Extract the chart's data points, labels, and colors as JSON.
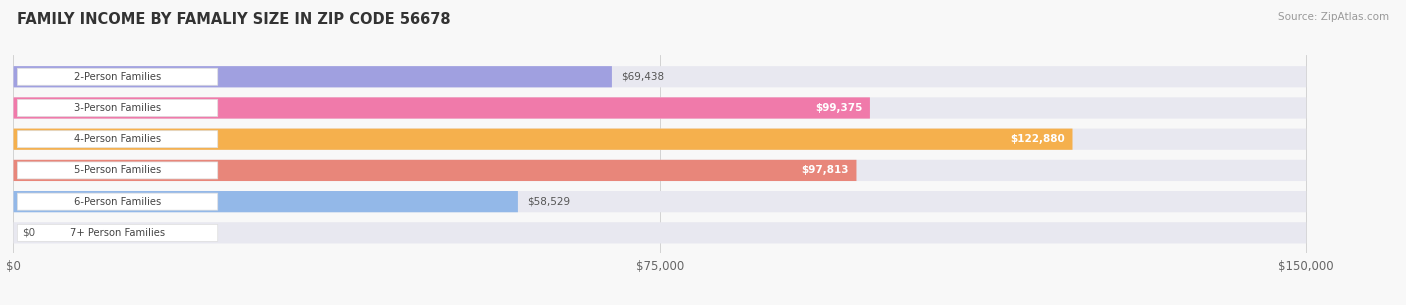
{
  "title": "FAMILY INCOME BY FAMALIY SIZE IN ZIP CODE 56678",
  "source": "Source: ZipAtlas.com",
  "categories": [
    "2-Person Families",
    "3-Person Families",
    "4-Person Families",
    "5-Person Families",
    "6-Person Families",
    "7+ Person Families"
  ],
  "values": [
    69438,
    99375,
    122880,
    97813,
    58529,
    0
  ],
  "bar_colors": [
    "#a0a0e0",
    "#f07aaa",
    "#f5b04d",
    "#e8867a",
    "#93b8e8",
    "#c9a8d4"
  ],
  "bar_bg_color": "#e8e8f0",
  "xmax": 150000,
  "xticks": [
    0,
    75000,
    150000
  ],
  "xtick_labels": [
    "$0",
    "$75,000",
    "$150,000"
  ],
  "value_labels": [
    "$69,438",
    "$99,375",
    "$122,880",
    "$97,813",
    "$58,529",
    "$0"
  ],
  "label_inside": [
    false,
    true,
    true,
    true,
    false,
    false
  ],
  "figsize": [
    14.06,
    3.05
  ],
  "dpi": 100,
  "bg_color": "#f8f8f8"
}
